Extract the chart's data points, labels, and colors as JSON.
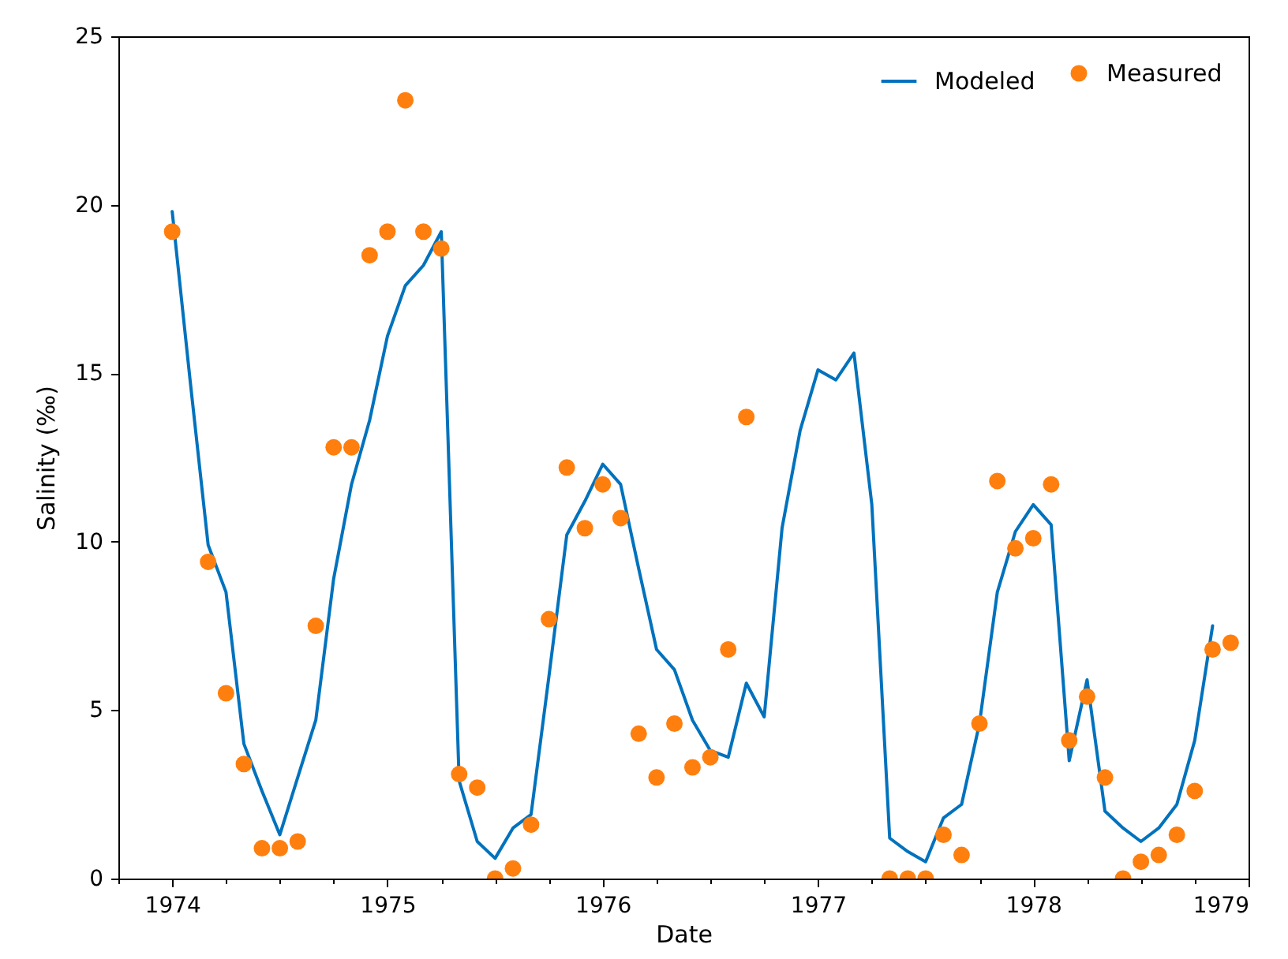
{
  "chart_data": {
    "type": "line",
    "xlabel": "Date",
    "ylabel": "Salinity (‰)",
    "xlim": [
      1973.75,
      1979
    ],
    "ylim": [
      0,
      25
    ],
    "xticks": [
      {
        "value": 1973.75,
        "label": null
      },
      1974,
      {
        "value": 1974.25,
        "label": null
      },
      {
        "value": 1974.5,
        "label": null
      },
      {
        "value": 1974.75,
        "label": null
      },
      1975,
      {
        "value": 1975.25,
        "label": null
      },
      {
        "value": 1975.5,
        "label": null
      },
      {
        "value": 1975.75,
        "label": null
      },
      1976,
      {
        "value": 1976.25,
        "label": null
      },
      {
        "value": 1976.5,
        "label": null
      },
      {
        "value": 1976.75,
        "label": null
      },
      1977,
      {
        "value": 1977.25,
        "label": null
      },
      {
        "value": 1977.5,
        "label": null
      },
      {
        "value": 1977.75,
        "label": null
      },
      1978,
      {
        "value": 1978.25,
        "label": null
      },
      {
        "value": 1978.5,
        "label": null
      },
      {
        "value": 1978.75,
        "label": null
      },
      1979
    ],
    "yticks": [
      0,
      5,
      10,
      15,
      20,
      25
    ],
    "legend": "top right",
    "series": [
      {
        "name": "Modeled",
        "type": "line",
        "color": "#0072bd",
        "marker": "none",
        "line_style": "solid",
        "x": [
          1974,
          1974.083,
          1974.167,
          1974.25,
          1974.333,
          1974.417,
          1974.5,
          1974.583,
          1974.667,
          1974.75,
          1974.833,
          1974.917,
          1975,
          1975.083,
          1975.167,
          1975.25,
          1975.333,
          1975.417,
          1975.5,
          1975.583,
          1975.667,
          1975.75,
          1975.833,
          1975.917,
          1976,
          1976.083,
          1976.167,
          1976.25,
          1976.333,
          1976.417,
          1976.5,
          1976.583,
          1976.667,
          1976.75,
          1976.833,
          1976.917,
          1977,
          1977.083,
          1977.167,
          1977.25,
          1977.333,
          1977.417,
          1977.5,
          1977.583,
          1977.667,
          1977.75,
          1977.833,
          1977.917,
          1978,
          1978.083,
          1978.167,
          1978.25,
          1978.333,
          1978.417,
          1978.5,
          1978.583,
          1978.667,
          1978.75,
          1978.833
        ],
        "values": [
          19.8,
          14.8,
          9.9,
          8.5,
          4.0,
          2.6,
          1.3,
          3.0,
          4.7,
          8.9,
          11.7,
          13.6,
          16.1,
          17.6,
          18.2,
          19.2,
          2.9,
          1.1,
          0.6,
          1.5,
          1.9,
          6.0,
          10.2,
          11.2,
          12.3,
          11.7,
          9.2,
          6.8,
          6.2,
          4.7,
          3.8,
          3.6,
          5.8,
          4.8,
          10.4,
          13.3,
          15.1,
          14.8,
          15.6,
          11.1,
          1.2,
          0.8,
          0.5,
          1.8,
          2.2,
          4.6,
          8.5,
          10.3,
          11.1,
          10.5,
          3.5,
          5.9,
          2.0,
          1.5,
          1.1,
          1.5,
          2.2,
          4.1,
          7.5
        ]
      },
      {
        "name": "Measured",
        "type": "scatter",
        "color": "#ff7f0e",
        "marker": "circle",
        "x": [
          1974,
          1974.167,
          1974.25,
          1974.333,
          1974.417,
          1974.5,
          1974.583,
          1974.667,
          1974.75,
          1974.833,
          1974.917,
          1975,
          1975.083,
          1975.167,
          1975.25,
          1975.333,
          1975.417,
          1975.5,
          1975.583,
          1975.667,
          1975.75,
          1975.833,
          1975.917,
          1976,
          1976.083,
          1976.167,
          1976.25,
          1976.333,
          1976.417,
          1976.5,
          1976.583,
          1976.667,
          1977.333,
          1977.417,
          1977.5,
          1977.583,
          1977.667,
          1977.75,
          1977.833,
          1977.917,
          1978,
          1978.083,
          1978.167,
          1978.25,
          1978.333,
          1978.417,
          1978.5,
          1978.583,
          1978.667,
          1978.75,
          1978.833,
          1978.917
        ],
        "values": [
          19.2,
          9.4,
          5.5,
          3.4,
          0.9,
          0.9,
          1.1,
          7.5,
          12.8,
          12.8,
          18.5,
          19.2,
          23.1,
          19.2,
          18.7,
          3.1,
          2.7,
          0,
          0.3,
          1.6,
          7.7,
          12.2,
          10.4,
          11.7,
          10.7,
          4.3,
          3.0,
          4.6,
          3.3,
          3.6,
          6.8,
          13.7,
          0,
          0,
          0,
          1.3,
          0.7,
          4.6,
          11.8,
          9.8,
          10.1,
          11.7,
          4.1,
          5.4,
          3.0,
          0,
          0.5,
          0.7,
          1.3,
          2.6,
          6.8,
          7.0
        ]
      }
    ]
  }
}
